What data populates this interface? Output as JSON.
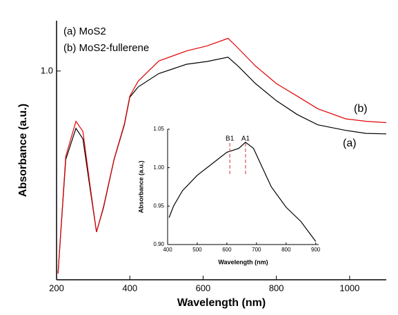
{
  "chart_data": [
    {
      "type": "line",
      "xlabel": "Wavelength (nm)",
      "ylabel": "Absorbance (a.u.)",
      "xlim": [
        200,
        1100
      ],
      "ylim": [
        0.17,
        1.2
      ],
      "xticks": [
        200,
        400,
        600,
        800,
        1000
      ],
      "yticks": [
        {
          "value": 1,
          "label": "1.0"
        }
      ],
      "legend": [
        "(a) MoS2",
        "(b) MoS2-fullerene"
      ],
      "annotations": [
        "(b)",
        "(a)"
      ],
      "x": [
        204,
        225,
        253,
        272,
        291,
        309,
        328,
        357,
        385,
        400,
        423,
        479,
        555,
        611,
        668,
        696,
        743,
        800,
        857,
        913,
        989,
        1045,
        1100
      ],
      "series": [
        {
          "name": "(a)",
          "color": "#000000",
          "values": [
            0.195,
            0.648,
            0.772,
            0.73,
            0.538,
            0.36,
            0.456,
            0.648,
            0.786,
            0.896,
            0.937,
            0.99,
            1.027,
            1.038,
            1.055,
            1.019,
            0.95,
            0.882,
            0.827,
            0.786,
            0.764,
            0.752,
            0.75
          ]
        },
        {
          "name": "(b)",
          "color": "#e00000",
          "values": [
            0.195,
            0.66,
            0.8,
            0.76,
            0.55,
            0.36,
            0.46,
            0.65,
            0.79,
            0.9,
            0.96,
            1.04,
            1.08,
            1.1,
            1.13,
            1.09,
            1.02,
            0.95,
            0.9,
            0.85,
            0.81,
            0.8,
            0.795
          ]
        }
      ]
    },
    {
      "type": "line",
      "xlabel": "Wavelength (nm)",
      "ylabel": "Absorbance (a.u.)",
      "xlim": [
        400,
        910
      ],
      "ylim": [
        0.9,
        1.05
      ],
      "xticks": [
        400,
        500,
        600,
        700,
        800,
        900
      ],
      "yticks": [
        {
          "value": 0.9,
          "label": "0.90"
        },
        {
          "value": 0.95,
          "label": "0.95"
        },
        {
          "value": 1,
          "label": "1.00"
        },
        {
          "value": 1.05,
          "label": "1.05"
        }
      ],
      "markers": [
        {
          "label": "B1",
          "x": 610
        },
        {
          "label": "A1",
          "x": 663
        }
      ],
      "x": [
        405,
        420,
        450,
        500,
        550,
        600,
        640,
        663,
        690,
        720,
        750,
        800,
        850,
        900
      ],
      "series": [
        {
          "name": "inset",
          "color": "#000000",
          "values": [
            0.935,
            0.95,
            0.97,
            0.99,
            1.005,
            1.02,
            1.025,
            1.033,
            1.025,
            1.0,
            0.975,
            0.9485,
            0.93,
            0.904
          ]
        }
      ]
    }
  ]
}
